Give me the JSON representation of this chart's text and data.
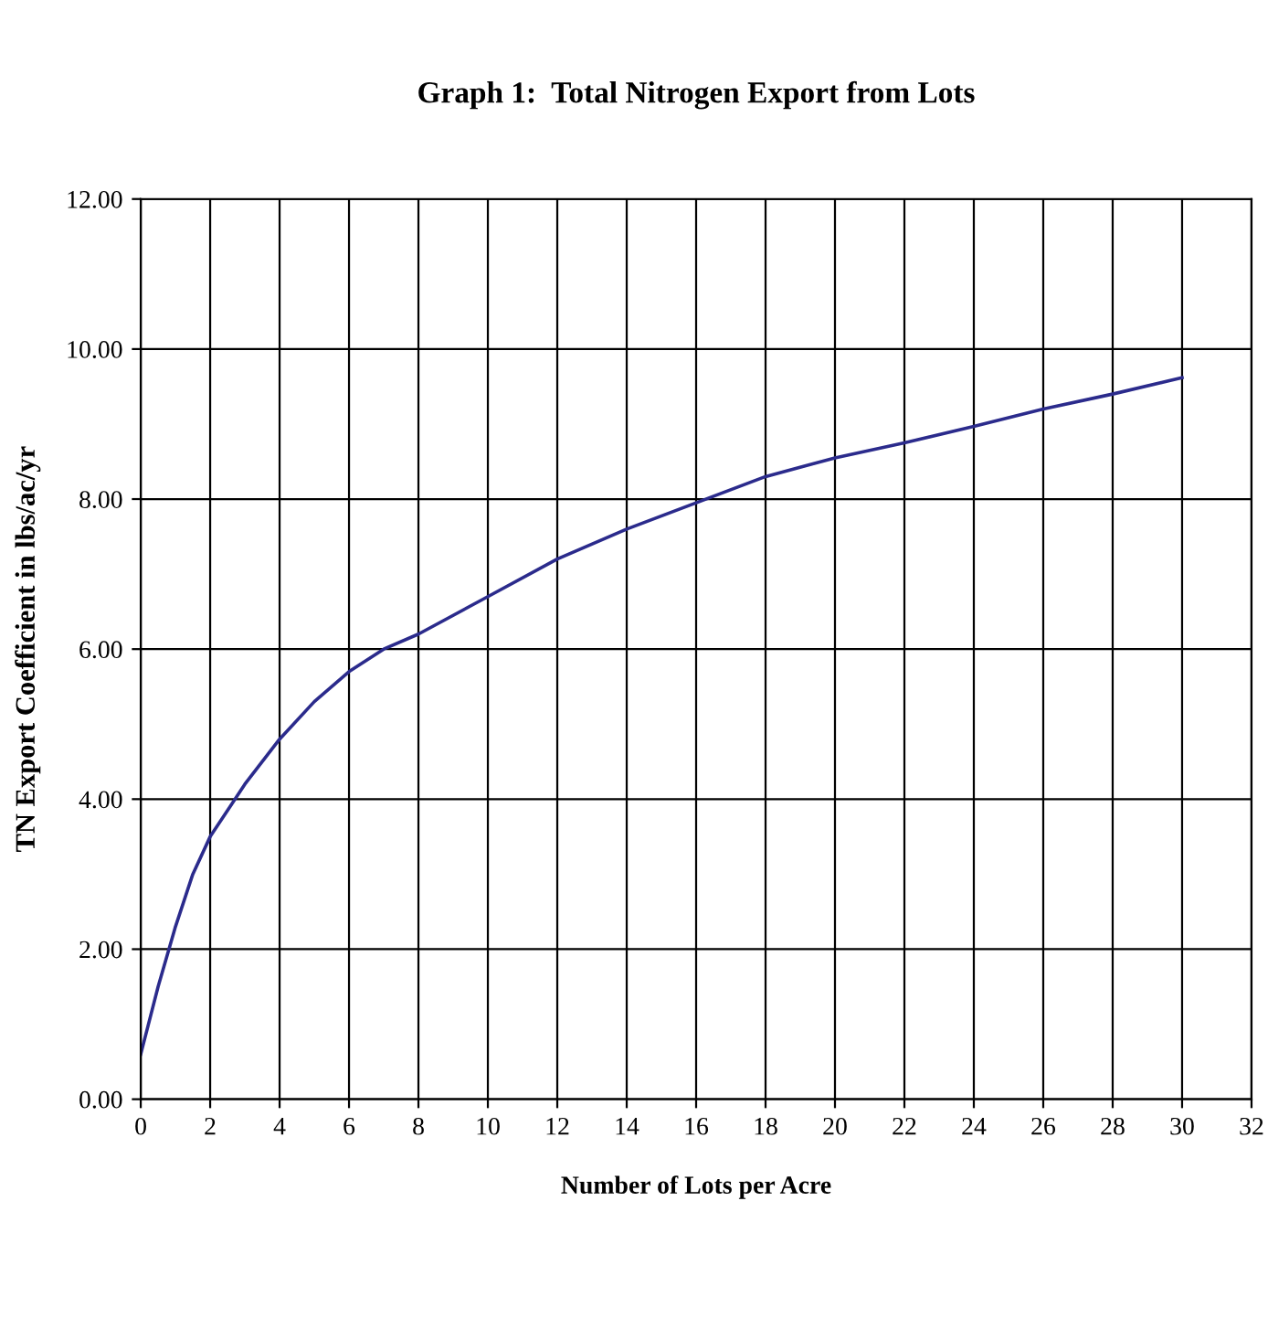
{
  "chart_data": {
    "type": "line",
    "title": "Graph 1:  Total Nitrogen Export from Lots",
    "xlabel": "Number of Lots per Acre",
    "ylabel": "TN Export Coefficient in lbs/ac/yr",
    "series": [
      {
        "color": "#2b2b8c",
        "x": [
          0,
          0.5,
          1,
          1.5,
          2,
          3,
          4,
          5,
          6,
          7,
          8,
          10,
          12,
          14,
          16,
          18,
          20,
          22,
          24,
          26,
          28,
          30
        ],
        "values": [
          0.6,
          1.5,
          2.3,
          3.0,
          3.5,
          4.2,
          4.8,
          5.3,
          5.7,
          6.0,
          6.2,
          6.7,
          7.2,
          7.6,
          7.95,
          8.3,
          8.55,
          8.75,
          8.97,
          9.2,
          9.4,
          9.62
        ]
      }
    ],
    "xlim": [
      0,
      32
    ],
    "xticks": [
      0,
      2,
      4,
      6,
      8,
      10,
      12,
      14,
      16,
      18,
      20,
      22,
      24,
      26,
      28,
      30,
      32
    ],
    "ylim": [
      0,
      12
    ],
    "yticks": [
      {
        "value": 0,
        "label": "0.00"
      },
      {
        "value": 2,
        "label": "2.00"
      },
      {
        "value": 4,
        "label": "4.00"
      },
      {
        "value": 6,
        "label": "6.00"
      },
      {
        "value": 8,
        "label": "8.00"
      },
      {
        "value": 10,
        "label": "10.00"
      },
      {
        "value": 12,
        "label": "12.00"
      }
    ],
    "grid": true,
    "legend": false,
    "marker": "none",
    "line_style": "solid"
  }
}
